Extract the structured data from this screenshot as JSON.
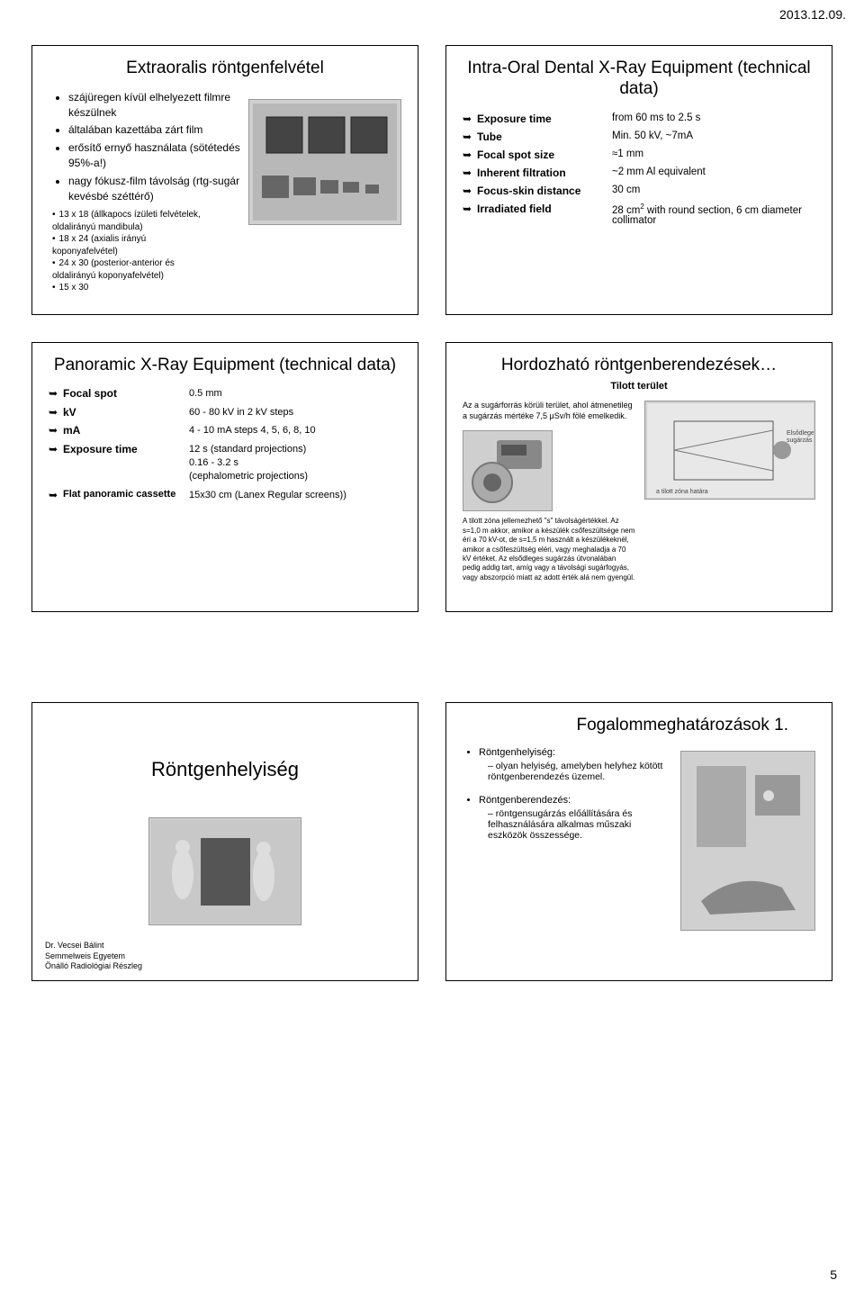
{
  "header": {
    "date": "2013.12.09."
  },
  "footer": {
    "page": "5"
  },
  "slide1": {
    "title": "Extraoralis röntgenfelvétel",
    "bullets": [
      "szájüregen kívül elhelyezett filmre készülnek",
      "általában kazettába zárt film",
      "erősítő ernyő használata (sötétedés 95%-a!)",
      "nagy fókusz-film távolság (rtg-sugár kevésbé széttérő)"
    ],
    "subs": [
      "13 x 18 (állkapocs ízületi felvételek, oldalirányú mandibula)",
      "18 x 24 (axialis irányú koponyafelvétel)",
      "24 x 30 (posterior-anterior és oldalirányú koponyafelvétel)",
      "15 x 30"
    ]
  },
  "slide2": {
    "title": "Intra-Oral Dental X-Ray Equipment (technical data)",
    "rows": [
      {
        "label": "Exposure time",
        "value": "from 60 ms to 2.5 s"
      },
      {
        "label": "Tube",
        "value": "Min. 50 kV, ~7mA"
      },
      {
        "label": "Focal spot size",
        "value": "≈1 mm"
      },
      {
        "label": "Inherent filtration",
        "value": "~2 mm Al equivalent"
      },
      {
        "label": "Focus-skin distance",
        "value": "30 cm"
      },
      {
        "label": "Irradiated field",
        "value_html": "28 cm<sup>2</sup> with round section, 6 cm diameter collimator"
      }
    ]
  },
  "slide3": {
    "title": "Panoramic X-Ray Equipment (technical data)",
    "rows": [
      {
        "label": "Focal spot",
        "value": "0.5 mm"
      },
      {
        "label": "kV",
        "value": "60 - 80 kV in 2 kV steps"
      },
      {
        "label": "mA",
        "value": "4 - 10 mA steps 4, 5, 6, 8, 10"
      },
      {
        "label": "Exposure time",
        "value": "12 s (standard projections)\n0.16 - 3.2 s\n(cephalometric projections)"
      },
      {
        "label": "Flat panoramic cassette",
        "value": "15x30 cm (Lanex Regular screens))"
      }
    ]
  },
  "slide4": {
    "title": "Hordozható röntgenberendezések…",
    "subtitle": "Tilott terület",
    "text1": "Az a sugárforrás körüli terület, ahol átmenetileg a sugárzás mértéke 7,5 μSv/h fölé emelkedik.",
    "text2": "A tilott zóna jellemezhető \"s\" távolságértékkel. Az s=1,0 m akkor, amikor a készülék csőfeszültsége nem éri a 70 kV-ot, de s=1,5 m használt a készülékeknél, amikor a csőfeszültség eléri, vagy meghaladja a 70 kV értéket. Az elsődleges sugárzás útvonalában pedig addig tart, amíg vagy a távolsági sugárfogyás, vagy abszorpció miatt az adott érték alá nem gyengül."
  },
  "slide5": {
    "title": "Röntgenhelyiség",
    "credit": "Dr. Vecsei Bálint\nSemmelweis Egyetem\nÖnálló Radiológiai Részleg"
  },
  "slide6": {
    "title": "Fogalommeghatározások 1.",
    "item1_label": "Röntgenhelyiség:",
    "item1_sub": "olyan helyiség, amelyben helyhez kötött röntgenberendezés üzemel.",
    "item2_label": "Röntgenberendezés:",
    "item2_sub": "röntgensugárzás előállítására és felhasználására alkalmas műszaki eszközök összessége."
  }
}
